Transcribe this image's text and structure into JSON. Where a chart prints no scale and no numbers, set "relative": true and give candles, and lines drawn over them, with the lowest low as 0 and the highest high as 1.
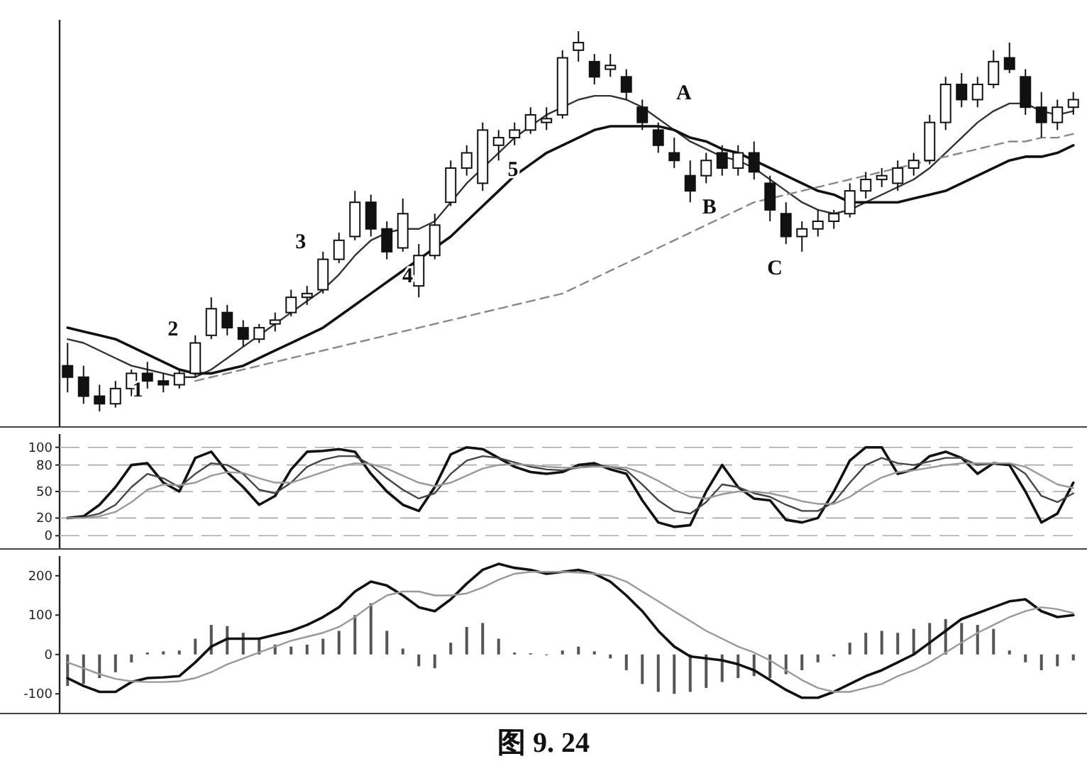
{
  "chart_data": [
    {
      "type": "candlestick",
      "relative": true,
      "color": "#111111",
      "categories": [
        null,
        null,
        null,
        null,
        null,
        null,
        null,
        null,
        null,
        null,
        null,
        null,
        null,
        null,
        null,
        null,
        null,
        null,
        null,
        null,
        null,
        null,
        null,
        null,
        null,
        null,
        null,
        null,
        null,
        null,
        null,
        null,
        null,
        null,
        null,
        null,
        null,
        null,
        null,
        null,
        null,
        null,
        null,
        null,
        null,
        null,
        null,
        null,
        null,
        null,
        null,
        null,
        null,
        null,
        null,
        null,
        null,
        null,
        null,
        null,
        null,
        null,
        null,
        null
      ],
      "ohlc": [
        [
          0.12,
          0.18,
          0.05,
          0.09
        ],
        [
          0.09,
          0.12,
          0.02,
          0.04
        ],
        [
          0.04,
          0.07,
          0,
          0.02
        ],
        [
          0.02,
          0.08,
          0.01,
          0.06
        ],
        [
          0.06,
          0.11,
          0.04,
          0.1
        ],
        [
          0.1,
          0.13,
          0.06,
          0.08
        ],
        [
          0.08,
          0.1,
          0.05,
          0.07
        ],
        [
          0.07,
          0.11,
          0.06,
          0.1
        ],
        [
          0.1,
          0.2,
          0.09,
          0.18
        ],
        [
          0.2,
          0.3,
          0.19,
          0.27
        ],
        [
          0.26,
          0.28,
          0.2,
          0.22
        ],
        [
          0.22,
          0.24,
          0.17,
          0.19
        ],
        [
          0.19,
          0.23,
          0.18,
          0.22
        ],
        [
          0.23,
          0.26,
          0.21,
          0.24
        ],
        [
          0.26,
          0.32,
          0.25,
          0.3
        ],
        [
          0.3,
          0.33,
          0.28,
          0.31
        ],
        [
          0.32,
          0.42,
          0.31,
          0.4
        ],
        [
          0.4,
          0.47,
          0.39,
          0.45
        ],
        [
          0.46,
          0.58,
          0.45,
          0.55
        ],
        [
          0.55,
          0.57,
          0.46,
          0.48
        ],
        [
          0.48,
          0.5,
          0.4,
          0.42
        ],
        [
          0.43,
          0.56,
          0.42,
          0.52
        ],
        [
          0.33,
          0.44,
          0.3,
          0.41
        ],
        [
          0.41,
          0.52,
          0.4,
          0.49
        ],
        [
          0.55,
          0.66,
          0.54,
          0.64
        ],
        [
          0.64,
          0.7,
          0.62,
          0.68
        ],
        [
          0.6,
          0.76,
          0.58,
          0.74
        ],
        [
          0.7,
          0.74,
          0.66,
          0.72
        ],
        [
          0.72,
          0.76,
          0.7,
          0.74
        ],
        [
          0.74,
          0.8,
          0.73,
          0.78
        ],
        [
          0.76,
          0.8,
          0.74,
          0.77
        ],
        [
          0.78,
          0.95,
          0.77,
          0.93
        ],
        [
          0.95,
          1,
          0.92,
          0.97
        ],
        [
          0.92,
          0.94,
          0.86,
          0.88
        ],
        [
          0.9,
          0.94,
          0.88,
          0.91
        ],
        [
          0.88,
          0.9,
          0.82,
          0.84
        ],
        [
          0.8,
          0.82,
          0.74,
          0.76
        ],
        [
          0.74,
          0.76,
          0.68,
          0.7
        ],
        [
          0.68,
          0.72,
          0.64,
          0.66
        ],
        [
          0.62,
          0.66,
          0.55,
          0.58
        ],
        [
          0.62,
          0.68,
          0.6,
          0.66
        ],
        [
          0.68,
          0.7,
          0.62,
          0.64
        ],
        [
          0.64,
          0.7,
          0.62,
          0.68
        ],
        [
          0.68,
          0.71,
          0.61,
          0.63
        ],
        [
          0.6,
          0.62,
          0.5,
          0.53
        ],
        [
          0.52,
          0.55,
          0.44,
          0.46
        ],
        [
          0.46,
          0.5,
          0.42,
          0.48
        ],
        [
          0.48,
          0.53,
          0.46,
          0.5
        ],
        [
          0.5,
          0.53,
          0.48,
          0.52
        ],
        [
          0.52,
          0.6,
          0.51,
          0.58
        ],
        [
          0.58,
          0.63,
          0.56,
          0.61
        ],
        [
          0.61,
          0.64,
          0.59,
          0.62
        ],
        [
          0.6,
          0.66,
          0.58,
          0.64
        ],
        [
          0.64,
          0.68,
          0.62,
          0.66
        ],
        [
          0.66,
          0.78,
          0.65,
          0.76
        ],
        [
          0.76,
          0.88,
          0.74,
          0.86
        ],
        [
          0.86,
          0.89,
          0.8,
          0.82
        ],
        [
          0.82,
          0.88,
          0.8,
          0.86
        ],
        [
          0.86,
          0.95,
          0.85,
          0.92
        ],
        [
          0.93,
          0.97,
          0.89,
          0.9
        ],
        [
          0.88,
          0.9,
          0.78,
          0.8
        ],
        [
          0.8,
          0.84,
          0.72,
          0.76
        ],
        [
          0.76,
          0.82,
          0.74,
          0.8
        ],
        [
          0.8,
          0.84,
          0.78,
          0.82
        ]
      ],
      "series": [
        {
          "type": "line",
          "color": "#333333",
          "values": [
            0.19,
            0.18,
            0.16,
            0.14,
            0.12,
            0.11,
            0.1,
            0.09,
            0.09,
            0.11,
            0.14,
            0.17,
            0.2,
            0.23,
            0.26,
            0.29,
            0.32,
            0.36,
            0.41,
            0.45,
            0.47,
            0.48,
            0.48,
            0.5,
            0.55,
            0.6,
            0.64,
            0.68,
            0.72,
            0.75,
            0.78,
            0.8,
            0.82,
            0.83,
            0.83,
            0.82,
            0.8,
            0.77,
            0.74,
            0.71,
            0.69,
            0.67,
            0.66,
            0.64,
            0.61,
            0.58,
            0.55,
            0.53,
            0.52,
            0.53,
            0.55,
            0.57,
            0.59,
            0.61,
            0.64,
            0.68,
            0.72,
            0.76,
            0.79,
            0.81,
            0.81,
            0.79,
            0.78,
            0.79
          ]
        },
        {
          "type": "line",
          "color": "#111111",
          "values": [
            0.22,
            0.21,
            0.2,
            0.19,
            0.17,
            0.15,
            0.13,
            0.11,
            0.1,
            0.1,
            0.11,
            0.12,
            0.14,
            0.16,
            0.18,
            0.2,
            0.22,
            0.25,
            0.28,
            0.31,
            0.34,
            0.37,
            0.4,
            0.43,
            0.46,
            0.5,
            0.54,
            0.58,
            0.62,
            0.65,
            0.68,
            0.7,
            0.72,
            0.74,
            0.75,
            0.75,
            0.75,
            0.75,
            0.74,
            0.72,
            0.71,
            0.69,
            0.68,
            0.66,
            0.64,
            0.62,
            0.6,
            0.58,
            0.57,
            0.55,
            0.55,
            0.55,
            0.55,
            0.56,
            0.57,
            0.58,
            0.6,
            0.62,
            0.64,
            0.66,
            0.67,
            0.67,
            0.68,
            0.7
          ]
        },
        {
          "type": "line",
          "color": "#888888",
          "line_style": "dashed",
          "values": [
            null,
            null,
            null,
            null,
            null,
            null,
            null,
            null,
            0.08,
            0.09,
            0.1,
            0.11,
            0.12,
            0.13,
            0.14,
            0.15,
            0.16,
            0.17,
            0.18,
            0.19,
            0.2,
            0.21,
            0.22,
            0.23,
            0.24,
            0.25,
            0.26,
            0.27,
            0.28,
            0.29,
            0.3,
            0.31,
            0.33,
            0.35,
            0.37,
            0.39,
            0.41,
            0.43,
            0.45,
            0.47,
            0.49,
            0.51,
            0.53,
            0.55,
            0.56,
            0.57,
            0.58,
            0.59,
            0.6,
            0.61,
            0.62,
            0.63,
            0.64,
            0.65,
            0.66,
            0.67,
            0.68,
            0.69,
            0.7,
            0.71,
            0.71,
            0.72,
            0.72,
            0.73
          ]
        }
      ],
      "annotations": [
        "1",
        "2",
        "3",
        "4",
        "5",
        "A",
        "B",
        "C"
      ]
    },
    {
      "type": "line",
      "categories": [
        null,
        null,
        null,
        null,
        null,
        null,
        null,
        null,
        null,
        null,
        null,
        null,
        null,
        null,
        null,
        null,
        null,
        null,
        null,
        null,
        null,
        null,
        null,
        null,
        null,
        null,
        null,
        null,
        null,
        null,
        null,
        null,
        null,
        null,
        null,
        null,
        null,
        null,
        null,
        null,
        null,
        null,
        null,
        null,
        null,
        null,
        null,
        null,
        null,
        null,
        null,
        null,
        null,
        null,
        null,
        null,
        null,
        null,
        null,
        null,
        null,
        null,
        null,
        null
      ],
      "ylim": [
        -15,
        115
      ],
      "yticks": [
        0,
        20,
        50,
        80,
        100
      ],
      "grid": "y",
      "series": [
        {
          "color": "#111111",
          "values": [
            20,
            22,
            35,
            55,
            80,
            82,
            60,
            50,
            88,
            95,
            72,
            55,
            35,
            45,
            75,
            95,
            96,
            98,
            95,
            70,
            50,
            35,
            28,
            55,
            92,
            100,
            98,
            88,
            78,
            72,
            70,
            72,
            80,
            82,
            75,
            70,
            40,
            15,
            10,
            12,
            50,
            80,
            55,
            42,
            40,
            18,
            15,
            20,
            50,
            85,
            100,
            100,
            70,
            75,
            90,
            95,
            88,
            70,
            82,
            80,
            50,
            15,
            25,
            60
          ]
        },
        {
          "color": "#444444",
          "values": [
            20,
            21,
            25,
            35,
            55,
            70,
            65,
            55,
            70,
            82,
            80,
            70,
            52,
            48,
            60,
            78,
            86,
            90,
            90,
            80,
            65,
            52,
            42,
            48,
            70,
            85,
            90,
            88,
            83,
            78,
            75,
            74,
            77,
            80,
            78,
            74,
            58,
            40,
            28,
            25,
            38,
            58,
            55,
            48,
            44,
            35,
            28,
            28,
            38,
            60,
            80,
            88,
            82,
            80,
            84,
            88,
            88,
            80,
            82,
            82,
            70,
            45,
            38,
            48
          ]
        },
        {
          "color": "#999999",
          "values": [
            20,
            20,
            22,
            27,
            38,
            52,
            58,
            57,
            60,
            68,
            72,
            71,
            65,
            60,
            60,
            66,
            72,
            78,
            82,
            81,
            76,
            68,
            60,
            56,
            60,
            68,
            76,
            80,
            81,
            80,
            78,
            77,
            77,
            78,
            78,
            77,
            71,
            62,
            52,
            44,
            42,
            47,
            50,
            50,
            48,
            44,
            39,
            36,
            36,
            44,
            56,
            66,
            72,
            74,
            77,
            80,
            82,
            82,
            82,
            82,
            78,
            68,
            58,
            54
          ]
        }
      ]
    },
    {
      "type": "bar",
      "categories": [
        null,
        null,
        null,
        null,
        null,
        null,
        null,
        null,
        null,
        null,
        null,
        null,
        null,
        null,
        null,
        null,
        null,
        null,
        null,
        null,
        null,
        null,
        null,
        null,
        null,
        null,
        null,
        null,
        null,
        null,
        null,
        null,
        null,
        null,
        null,
        null,
        null,
        null,
        null,
        null,
        null,
        null,
        null,
        null,
        null,
        null,
        null,
        null,
        null,
        null,
        null,
        null,
        null,
        null,
        null,
        null,
        null,
        null,
        null,
        null,
        null,
        null,
        null,
        null
      ],
      "ylim": [
        -150,
        250
      ],
      "yticks": [
        -100,
        0,
        100,
        200
      ],
      "series": [
        {
          "type": "bar",
          "color": "#555555",
          "values": [
            -80,
            -75,
            -60,
            -45,
            -20,
            5,
            8,
            10,
            40,
            75,
            72,
            55,
            40,
            25,
            20,
            25,
            40,
            60,
            100,
            130,
            60,
            15,
            -30,
            -35,
            30,
            70,
            80,
            40,
            5,
            3,
            -2,
            10,
            20,
            8,
            -10,
            -40,
            -75,
            -95,
            -100,
            -95,
            -85,
            -70,
            -60,
            -55,
            -60,
            -50,
            -40,
            -20,
            -5,
            30,
            55,
            60,
            55,
            65,
            80,
            90,
            80,
            75,
            65,
            10,
            -20,
            -40,
            -30,
            -15
          ]
        },
        {
          "type": "line",
          "color": "#111111",
          "values": [
            -60,
            -80,
            -95,
            -95,
            -70,
            -60,
            -58,
            -55,
            -20,
            20,
            40,
            40,
            40,
            50,
            60,
            75,
            95,
            120,
            160,
            185,
            175,
            150,
            120,
            110,
            140,
            180,
            215,
            230,
            220,
            215,
            205,
            210,
            215,
            205,
            185,
            150,
            110,
            60,
            20,
            -5,
            -10,
            -15,
            -25,
            -40,
            -65,
            -90,
            -110,
            -110,
            -95,
            -75,
            -55,
            -40,
            -20,
            0,
            30,
            60,
            90,
            105,
            120,
            135,
            140,
            110,
            95,
            100
          ]
        },
        {
          "type": "line",
          "color": "#999999",
          "values": [
            -20,
            -35,
            -50,
            -62,
            -68,
            -70,
            -70,
            -68,
            -60,
            -45,
            -25,
            -10,
            5,
            20,
            35,
            45,
            55,
            70,
            95,
            125,
            150,
            160,
            160,
            150,
            150,
            155,
            170,
            190,
            205,
            210,
            210,
            210,
            208,
            205,
            200,
            185,
            160,
            135,
            110,
            85,
            60,
            40,
            20,
            5,
            -15,
            -40,
            -65,
            -85,
            -95,
            -95,
            -85,
            -75,
            -55,
            -40,
            -20,
            5,
            30,
            55,
            75,
            95,
            110,
            120,
            115,
            105
          ]
        }
      ],
      "annotations": [
        "图 9. 24"
      ]
    }
  ]
}
